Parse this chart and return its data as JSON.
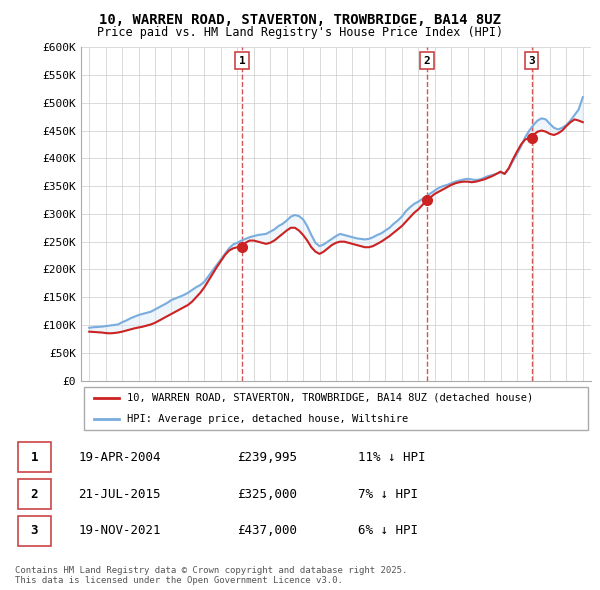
{
  "title": "10, WARREN ROAD, STAVERTON, TROWBRIDGE, BA14 8UZ",
  "subtitle": "Price paid vs. HM Land Registry's House Price Index (HPI)",
  "ylabel_ticks": [
    "£0",
    "£50K",
    "£100K",
    "£150K",
    "£200K",
    "£250K",
    "£300K",
    "£350K",
    "£400K",
    "£450K",
    "£500K",
    "£550K",
    "£600K"
  ],
  "ytick_values": [
    0,
    50000,
    100000,
    150000,
    200000,
    250000,
    300000,
    350000,
    400000,
    450000,
    500000,
    550000,
    600000
  ],
  "xlim": [
    1994.5,
    2025.5
  ],
  "ylim": [
    0,
    600000
  ],
  "hpi_color": "#7aaddd",
  "hpi_fill_color": "#d0e4f5",
  "price_color": "#cc2222",
  "vline_color": "#cc4444",
  "sale_dates": [
    2004.29,
    2015.54,
    2021.89
  ],
  "sale_prices": [
    239995,
    325000,
    437000
  ],
  "sale_labels": [
    "1",
    "2",
    "3"
  ],
  "legend_line1": "10, WARREN ROAD, STAVERTON, TROWBRIDGE, BA14 8UZ (detached house)",
  "legend_line2": "HPI: Average price, detached house, Wiltshire",
  "table_data": [
    {
      "num": "1",
      "date": "19-APR-2004",
      "price": "£239,995",
      "pct": "11% ↓ HPI"
    },
    {
      "num": "2",
      "date": "21-JUL-2015",
      "price": "£325,000",
      "pct": "7% ↓ HPI"
    },
    {
      "num": "3",
      "date": "19-NOV-2021",
      "price": "£437,000",
      "pct": "6% ↓ HPI"
    }
  ],
  "footnote": "Contains HM Land Registry data © Crown copyright and database right 2025.\nThis data is licensed under the Open Government Licence v3.0."
}
